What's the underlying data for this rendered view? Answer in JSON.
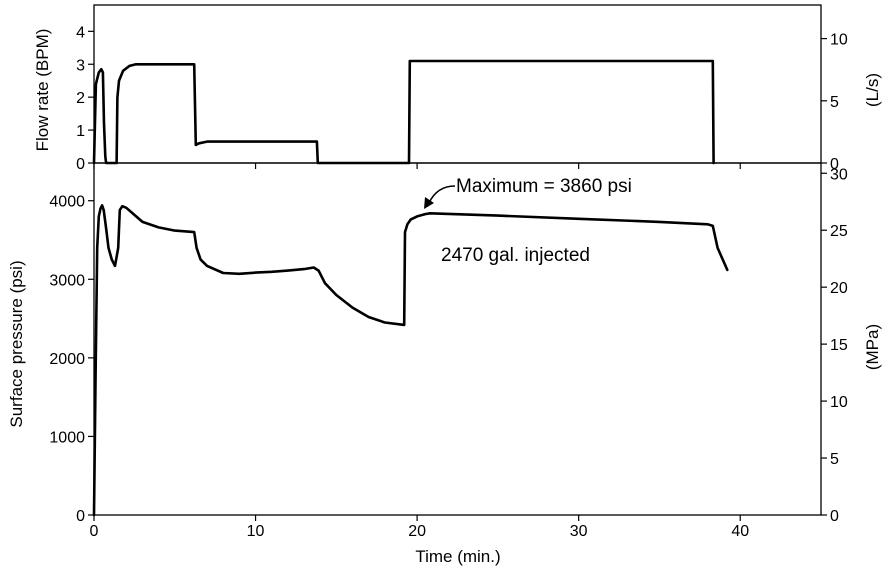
{
  "chart_data": [
    {
      "type": "line",
      "xlabel": "",
      "ylabel": "Flow rate (BPM)",
      "y2label": "(L/s)",
      "xlim": [
        0,
        45
      ],
      "ylim": [
        0,
        4.8
      ],
      "y2lim": [
        0,
        12.7
      ],
      "xticks": [
        0,
        10,
        20,
        30,
        40
      ],
      "yticks": [
        0,
        1,
        2,
        3,
        4
      ],
      "y2ticks": [
        0,
        5,
        10
      ],
      "grid": false,
      "series": [
        {
          "x": [
            0,
            0.12,
            0.3,
            0.45,
            0.55,
            0.62,
            0.7,
            0.75,
            1.4,
            1.45,
            1.55,
            1.8,
            2.2,
            2.6,
            6.2,
            6.3,
            6.5,
            7.0,
            13.8,
            13.85,
            19.5,
            19.55,
            38.3,
            38.35
          ],
          "y": [
            0,
            2.4,
            2.75,
            2.85,
            2.75,
            1.2,
            0.2,
            0,
            0,
            2.0,
            2.5,
            2.8,
            2.95,
            3.0,
            3.0,
            0.55,
            0.6,
            0.65,
            0.65,
            0,
            0,
            3.1,
            3.1,
            0
          ]
        }
      ]
    },
    {
      "type": "line",
      "xlabel": "Time (min.)",
      "ylabel": "Surface pressure (psi)",
      "y2label": "(MPa)",
      "xlim": [
        0,
        45
      ],
      "ylim": [
        0,
        4480
      ],
      "y2lim": [
        0,
        30.9
      ],
      "xticks": [
        0,
        10,
        20,
        30,
        40
      ],
      "yticks": [
        0,
        1000,
        2000,
        3000,
        4000
      ],
      "y2ticks": [
        0,
        5,
        10,
        15,
        20,
        25,
        30
      ],
      "grid": false,
      "annotations": [
        {
          "text": "Maximum = 3860 psi",
          "x": 20.8,
          "y": 3860
        },
        {
          "text": "2470 gal. injected"
        }
      ],
      "series": [
        {
          "x": [
            0,
            0.1,
            0.2,
            0.3,
            0.4,
            0.5,
            0.6,
            0.75,
            0.9,
            1.1,
            1.3,
            1.5,
            1.6,
            1.75,
            2.0,
            2.5,
            3.0,
            4.0,
            5.0,
            6.2,
            6.35,
            6.6,
            7.0,
            8.0,
            9.0,
            10.0,
            11.0,
            12.0,
            13.0,
            13.6,
            13.9,
            14.3,
            15.0,
            16.0,
            17.0,
            18.0,
            19.2,
            19.25,
            19.4,
            19.6,
            20.0,
            20.5,
            20.8,
            25.0,
            30.0,
            35.0,
            38.0,
            38.3,
            38.6,
            39.2
          ],
          "y": [
            0,
            1800,
            3400,
            3800,
            3900,
            3940,
            3880,
            3650,
            3400,
            3250,
            3170,
            3400,
            3880,
            3930,
            3910,
            3820,
            3730,
            3660,
            3620,
            3600,
            3400,
            3250,
            3170,
            3080,
            3070,
            3085,
            3095,
            3110,
            3130,
            3150,
            3110,
            2950,
            2800,
            2640,
            2520,
            2450,
            2420,
            3600,
            3700,
            3760,
            3800,
            3830,
            3840,
            3810,
            3770,
            3730,
            3700,
            3680,
            3400,
            3120
          ]
        }
      ]
    }
  ]
}
